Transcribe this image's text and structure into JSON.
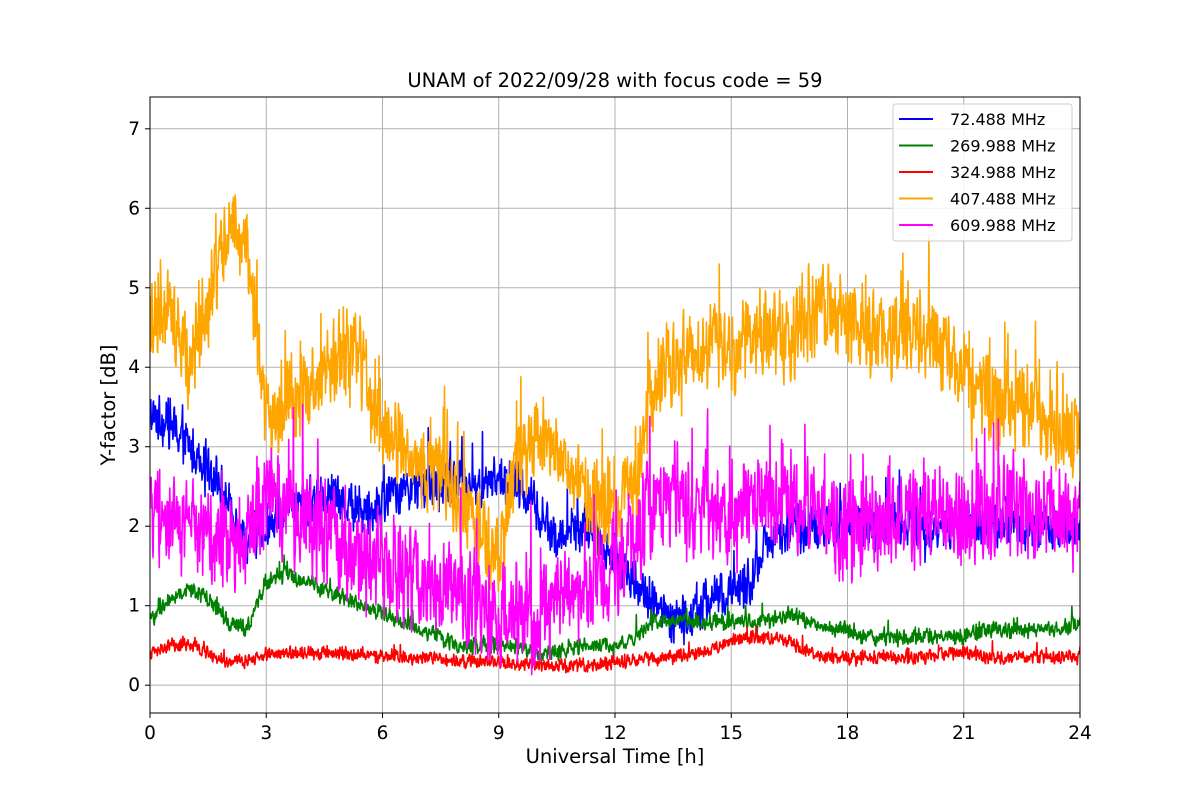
{
  "chart_data": {
    "type": "line",
    "title": "UNAM of 2022/09/28 with focus code = 59",
    "xlabel": "Universal Time [h]",
    "ylabel": "Y-factor [dB]",
    "xlim": [
      0,
      24
    ],
    "ylim": [
      -0.35,
      7.4
    ],
    "xticks": [
      0,
      3,
      6,
      9,
      12,
      15,
      18,
      21,
      24
    ],
    "xtick_labels": [
      "0",
      "3",
      "6",
      "9",
      "12",
      "15",
      "18",
      "21",
      "24"
    ],
    "yticks": [
      0,
      1,
      2,
      3,
      4,
      5,
      6,
      7
    ],
    "ytick_labels": [
      "0",
      "1",
      "2",
      "3",
      "4",
      "5",
      "6",
      "7"
    ],
    "grid": true,
    "legend_position": "top-right",
    "series": [
      {
        "name": "72.488 MHz",
        "color": "#0000ff",
        "x": [
          0,
          0.5,
          1,
          1.5,
          2,
          2.5,
          3,
          3.5,
          4,
          4.5,
          5,
          5.5,
          6,
          6.5,
          7,
          7.5,
          8,
          8.5,
          9,
          9.5,
          10,
          10.5,
          11,
          11.5,
          12,
          12.5,
          13,
          13.5,
          14,
          14.5,
          15,
          15.5,
          16,
          16.5,
          17,
          17.5,
          18,
          18.5,
          19,
          19.5,
          20,
          20.5,
          21,
          21.5,
          22,
          22.5,
          23,
          23.5,
          24
        ],
        "y": [
          3.4,
          3.3,
          3.0,
          2.8,
          2.3,
          1.8,
          2.0,
          2.2,
          2.3,
          2.4,
          2.3,
          2.2,
          2.3,
          2.5,
          2.5,
          2.5,
          2.6,
          2.5,
          2.6,
          2.5,
          2.2,
          1.8,
          2.0,
          1.9,
          1.6,
          1.3,
          1.0,
          0.8,
          0.9,
          1.1,
          1.2,
          1.3,
          1.9,
          2.0,
          2.0,
          2.0,
          2.0,
          2.0,
          2.0,
          2.0,
          2.0,
          2.0,
          2.0,
          2.0,
          2.0,
          2.0,
          2.0,
          2.0,
          2.0
        ],
        "noise": 0.35
      },
      {
        "name": "269.988 MHz",
        "color": "#008000",
        "x": [
          0,
          0.5,
          1,
          1.5,
          2,
          2.5,
          3,
          3.5,
          4,
          4.5,
          5,
          5.5,
          6,
          6.5,
          7,
          7.5,
          8,
          8.5,
          9,
          9.5,
          10,
          10.5,
          11,
          11.5,
          12,
          12.5,
          13,
          13.5,
          14,
          14.5,
          15,
          15.5,
          16,
          16.5,
          17,
          17.5,
          18,
          18.5,
          19,
          19.5,
          20,
          20.5,
          21,
          21.5,
          22,
          22.5,
          23,
          23.5,
          24
        ],
        "y": [
          0.8,
          1.1,
          1.2,
          1.1,
          0.8,
          0.7,
          1.3,
          1.4,
          1.3,
          1.2,
          1.1,
          1.0,
          0.9,
          0.8,
          0.7,
          0.6,
          0.5,
          0.5,
          0.5,
          0.5,
          0.4,
          0.4,
          0.5,
          0.5,
          0.5,
          0.6,
          0.8,
          0.8,
          0.8,
          0.8,
          0.8,
          0.8,
          0.8,
          0.9,
          0.8,
          0.7,
          0.7,
          0.6,
          0.6,
          0.6,
          0.6,
          0.6,
          0.6,
          0.7,
          0.7,
          0.7,
          0.7,
          0.7,
          0.8
        ],
        "noise": 0.12
      },
      {
        "name": "324.988 MHz",
        "color": "#ff0000",
        "x": [
          0,
          0.5,
          1,
          1.5,
          2,
          2.5,
          3,
          3.5,
          4,
          4.5,
          5,
          5.5,
          6,
          6.5,
          7,
          7.5,
          8,
          8.5,
          9,
          9.5,
          10,
          10.5,
          11,
          11.5,
          12,
          12.5,
          13,
          13.5,
          14,
          14.5,
          15,
          15.5,
          16,
          16.5,
          17,
          17.5,
          18,
          18.5,
          19,
          19.5,
          20,
          20.5,
          21,
          21.5,
          22,
          22.5,
          23,
          23.5,
          24
        ],
        "y": [
          0.4,
          0.5,
          0.5,
          0.4,
          0.3,
          0.3,
          0.4,
          0.4,
          0.4,
          0.4,
          0.4,
          0.4,
          0.35,
          0.35,
          0.35,
          0.35,
          0.3,
          0.3,
          0.3,
          0.25,
          0.25,
          0.25,
          0.25,
          0.25,
          0.3,
          0.3,
          0.35,
          0.35,
          0.4,
          0.45,
          0.55,
          0.6,
          0.6,
          0.55,
          0.4,
          0.35,
          0.35,
          0.35,
          0.35,
          0.35,
          0.35,
          0.4,
          0.4,
          0.35,
          0.35,
          0.35,
          0.35,
          0.35,
          0.35
        ],
        "noise": 0.1
      },
      {
        "name": "407.488 MHz",
        "color": "#ffa500",
        "x": [
          0,
          0.5,
          1,
          1.5,
          2,
          2.5,
          3,
          3.5,
          4,
          4.5,
          5,
          5.5,
          6,
          6.5,
          7,
          7.5,
          8,
          8.5,
          9,
          9.5,
          10,
          10.5,
          11,
          11.5,
          12,
          12.5,
          13,
          13.5,
          14,
          14.5,
          15,
          15.5,
          16,
          16.5,
          17,
          17.5,
          18,
          18.5,
          19,
          19.5,
          20,
          20.5,
          21,
          21.5,
          22,
          22.5,
          23,
          23.5,
          24
        ],
        "y": [
          4.6,
          4.8,
          4.2,
          4.7,
          5.8,
          5.6,
          3.4,
          3.6,
          3.7,
          3.9,
          4.2,
          4.0,
          3.2,
          2.9,
          2.7,
          2.6,
          2.3,
          1.9,
          1.6,
          2.8,
          3.2,
          2.8,
          2.5,
          2.2,
          2.3,
          2.4,
          3.8,
          4.1,
          4.2,
          4.3,
          4.2,
          4.4,
          4.4,
          4.4,
          4.7,
          4.7,
          4.6,
          4.5,
          4.4,
          4.5,
          4.4,
          4.2,
          3.9,
          3.6,
          3.5,
          3.5,
          3.4,
          3.2,
          3.1
        ],
        "noise": 0.65
      },
      {
        "name": "609.988 MHz",
        "color": "#ff00ff",
        "x": [
          0,
          0.5,
          1,
          1.5,
          2,
          2.5,
          3,
          3.5,
          4,
          4.5,
          5,
          5.5,
          6,
          6.5,
          7,
          7.5,
          8,
          8.5,
          9,
          9.5,
          10,
          10.5,
          11,
          11.5,
          12,
          12.5,
          13,
          13.5,
          14,
          14.5,
          15,
          15.5,
          16,
          16.5,
          17,
          17.5,
          18,
          18.5,
          19,
          19.5,
          20,
          20.5,
          21,
          21.5,
          22,
          22.5,
          23,
          23.5,
          24
        ],
        "y": [
          2.2,
          2.1,
          2.0,
          1.9,
          1.8,
          2.0,
          2.4,
          2.2,
          2.0,
          1.9,
          1.7,
          1.6,
          1.5,
          1.4,
          1.3,
          1.2,
          1.1,
          1.0,
          0.9,
          0.9,
          0.8,
          1.0,
          1.2,
          1.4,
          1.5,
          1.9,
          2.3,
          2.4,
          2.2,
          2.1,
          2.1,
          2.3,
          2.4,
          2.3,
          2.2,
          2.1,
          2.0,
          2.0,
          2.0,
          2.1,
          2.2,
          2.2,
          2.1,
          2.1,
          2.2,
          2.2,
          2.1,
          2.1,
          2.1
        ],
        "noise": 0.75
      }
    ]
  }
}
